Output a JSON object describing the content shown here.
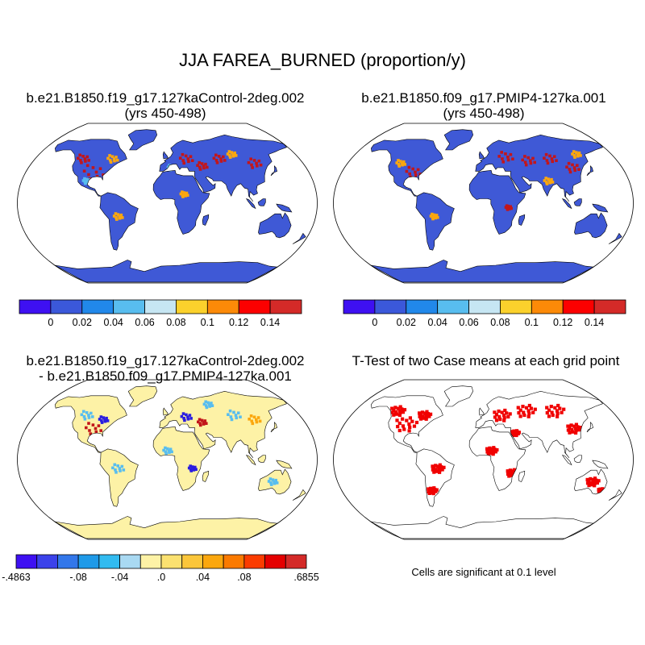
{
  "title": "JJA FAREA_BURNED (proportion/y)",
  "panels": [
    {
      "id": "control",
      "title_lines": [
        "b.e21.B1850.f19_g17.127kaControl-2deg.002",
        "(yrs 450-498)"
      ],
      "fill": "#3f59d6"
    },
    {
      "id": "pmip4",
      "title_lines": [
        "b.e21.B1850.f09_g17.PMIP4-127ka.001",
        "(yrs 450-498)"
      ],
      "fill": "#3f59d6"
    },
    {
      "id": "difference",
      "title_lines": [
        "b.e21.B1850.f19_g17.127kaControl-2deg.002",
        "- b.e21.B1850.f09_g17.PMIP4-127ka.001"
      ],
      "fill": "#fdf2a6"
    },
    {
      "id": "ttest",
      "title_lines": [
        "T-Test of two Case means at each grid point"
      ],
      "fill": "#ffffff"
    }
  ],
  "colorbars": {
    "abs": {
      "colors": [
        "#3e10f2",
        "#3b58da",
        "#2188ea",
        "#58bdef",
        "#c6e6f3",
        "#fbd12c",
        "#fc8a08",
        "#fc0000",
        "#d42a28"
      ],
      "labels": [
        "0",
        "0.02",
        "0.04",
        "0.06",
        "0.08",
        "0.1",
        "0.12",
        "0.14"
      ]
    },
    "diff": {
      "colors": [
        "#3e10f2",
        "#3b42ea",
        "#3377ea",
        "#1f9ae8",
        "#32bbf0",
        "#a9d9f2",
        "#fdf2a6",
        "#fbe170",
        "#fbc63a",
        "#fba70e",
        "#fb7a00",
        "#fb3c00",
        "#e40000",
        "#d42a28"
      ],
      "labels": [
        {
          "text": "-.4863",
          "pos": 0
        },
        {
          "text": "-.08",
          "pos": 3
        },
        {
          "text": "-.04",
          "pos": 5
        },
        {
          "text": ".0",
          "pos": 7
        },
        {
          "text": ".04",
          "pos": 9
        },
        {
          "text": ".08",
          "pos": 11
        },
        {
          "text": ".6855",
          "pos": 14
        }
      ]
    }
  },
  "significance_note": "Cells are significant at 0.1 level",
  "hotspot_colors": {
    "high": "#c2161b",
    "mid": "#fba70e",
    "low": "#58bdef",
    "neg": "#2a1de0",
    "sig": "#f00000"
  }
}
